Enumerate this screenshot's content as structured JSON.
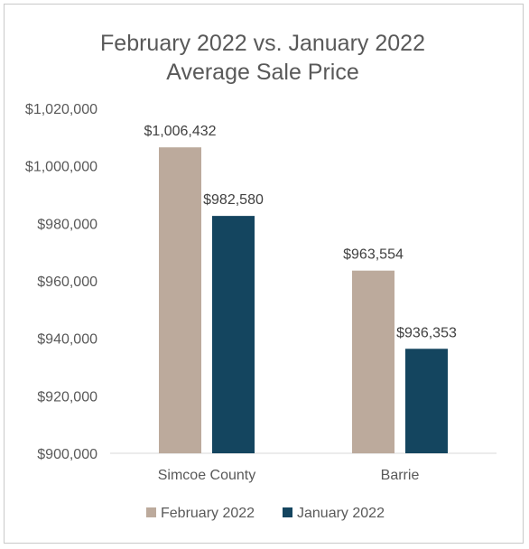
{
  "chart_data": {
    "type": "bar",
    "title": "February 2022 vs. January 2022",
    "subtitle": "Average Sale Price",
    "xlabel": "",
    "ylabel": "",
    "categories": [
      "Simcoe County",
      "Barrie"
    ],
    "series": [
      {
        "name": "February 2022",
        "values": [
          1006432,
          963554
        ],
        "labels": [
          "$1,006,432",
          "$963,554"
        ],
        "color": "#bcaa9c"
      },
      {
        "name": "January 2022",
        "values": [
          982580,
          936353
        ],
        "labels": [
          "$982,580",
          "$936,353"
        ],
        "color": "#14455f"
      }
    ],
    "ylim": [
      900000,
      1020000
    ],
    "yticks": [
      900000,
      920000,
      940000,
      960000,
      980000,
      1000000,
      1020000
    ],
    "ytick_labels": [
      "$900,000",
      "$920,000",
      "$940,000",
      "$960,000",
      "$980,000",
      "$1,000,000",
      "$1,020,000"
    ],
    "grid": false,
    "legend": "bottom"
  }
}
